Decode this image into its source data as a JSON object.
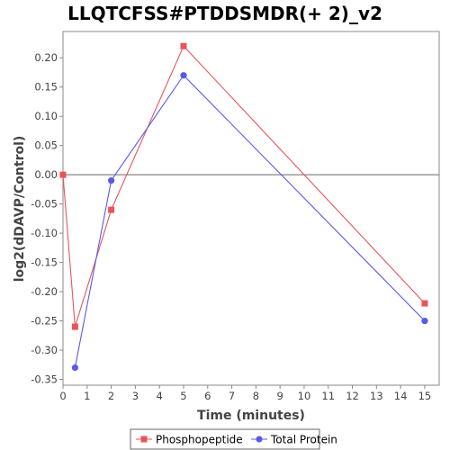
{
  "chart_data": {
    "type": "line",
    "title": "LLQTCFSS#PTDDSMDR(+ 2)_v2",
    "xlabel": "Time (minutes)",
    "ylabel": "log2(dDAVP/Control)",
    "xlim": [
      0,
      15.6
    ],
    "ylim": [
      -0.36,
      0.245
    ],
    "x_ticks": [
      0,
      1,
      2,
      3,
      4,
      5,
      6,
      7,
      8,
      9,
      10,
      11,
      12,
      13,
      14,
      15
    ],
    "y_ticks": [
      -0.35,
      -0.3,
      -0.25,
      -0.2,
      -0.15,
      -0.1,
      -0.05,
      0.0,
      0.05,
      0.1,
      0.15,
      0.2
    ],
    "y_tick_labels": [
      "-0.35",
      "-0.30",
      "-0.25",
      "-0.20",
      "-0.15",
      "-0.10",
      "-0.05",
      "0.00",
      "0.05",
      "0.10",
      "0.15",
      "0.20"
    ],
    "zero_line": true,
    "grid": false,
    "legend_position": "bottom",
    "series": [
      {
        "name": "Phosphopeptide",
        "color": "#e8555a",
        "marker": "square",
        "x": [
          0,
          0.5,
          2,
          5,
          15
        ],
        "y": [
          0.0,
          -0.26,
          -0.06,
          0.22,
          -0.22
        ]
      },
      {
        "name": "Total Protein",
        "color": "#5a5ae8",
        "marker": "circle",
        "x": [
          0.5,
          2,
          5,
          15
        ],
        "y": [
          -0.33,
          -0.01,
          0.17,
          -0.25
        ]
      }
    ]
  }
}
